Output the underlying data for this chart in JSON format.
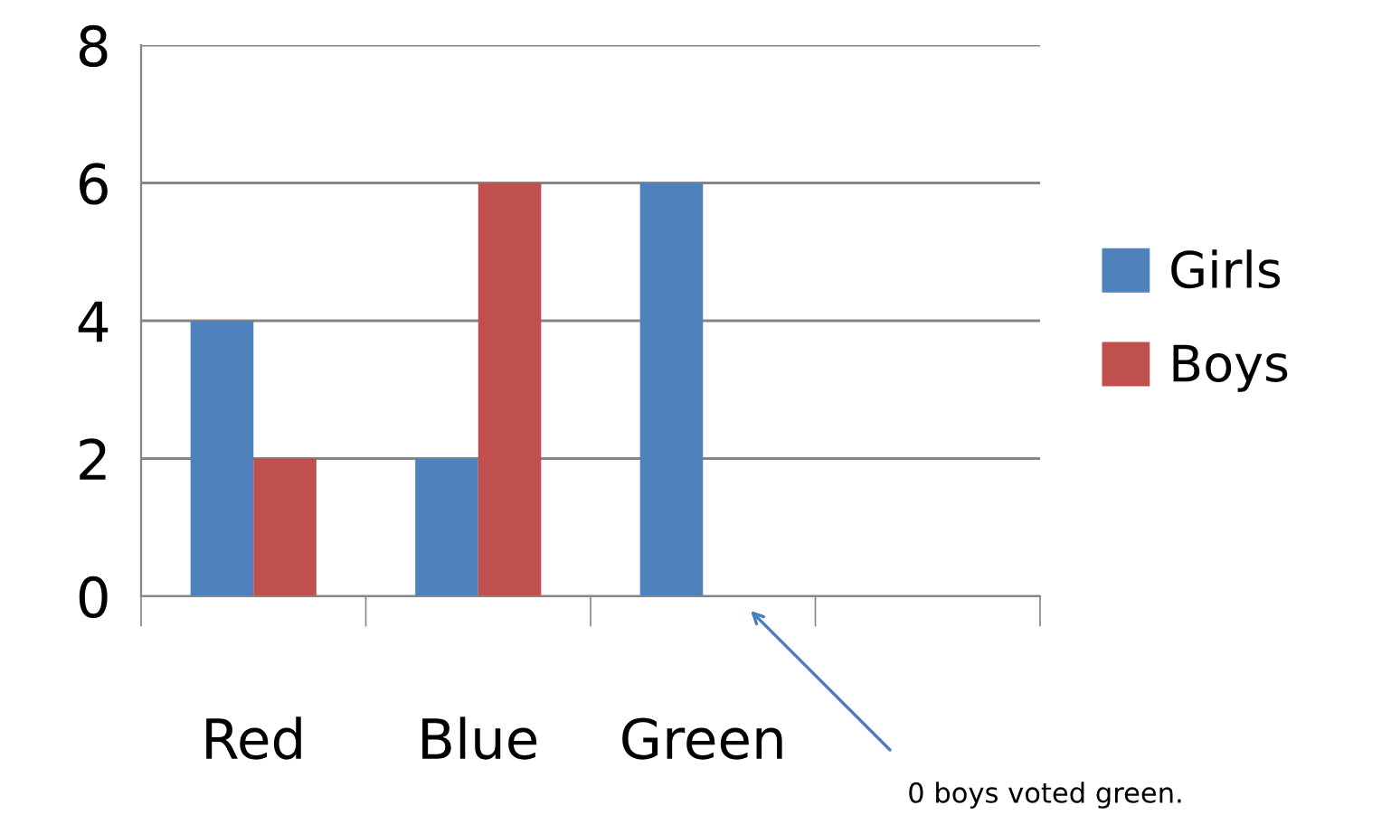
{
  "chart_data": {
    "type": "bar",
    "categories": [
      "Red",
      "Blue",
      "Green",
      null
    ],
    "series": [
      {
        "name": "Girls",
        "color": "#4f81bd",
        "values": [
          4,
          2,
          6,
          null
        ]
      },
      {
        "name": "Boys",
        "color": "#c0504d",
        "values": [
          2,
          6,
          0,
          null
        ]
      }
    ],
    "ylim": [
      0,
      8
    ],
    "yticks": [
      0,
      2,
      4,
      6,
      8
    ],
    "grid": "y",
    "legend": "right",
    "annotations": [
      "0 boys voted green."
    ]
  }
}
